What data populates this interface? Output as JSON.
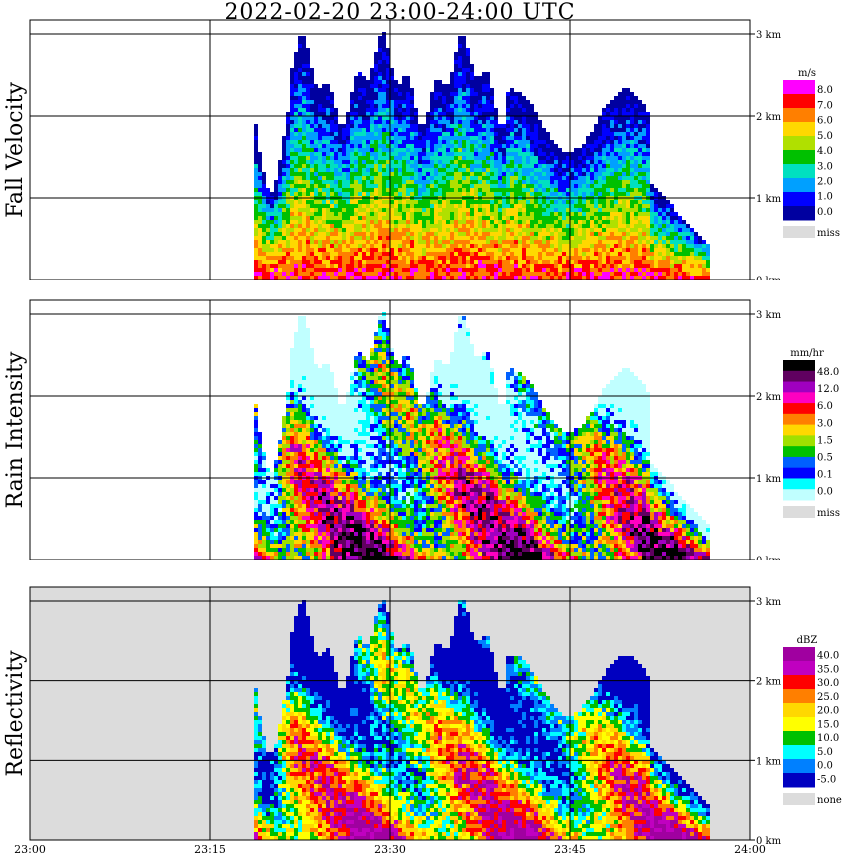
{
  "title": "2022-02-20  23:00-24:00 UTC",
  "chart_data": [
    {
      "type": "heatmap",
      "ylabel": "Fall Velocity",
      "x_ticks": [
        "23:00",
        "23:15",
        "23:30",
        "23:45",
        "24:00"
      ],
      "y_ticks": [
        "0 km",
        "1 km",
        "2 km",
        "3 km"
      ],
      "legend": {
        "unit": "m/s",
        "labels": [
          "8.0",
          "7.0",
          "6.0",
          "5.0",
          "4.0",
          "3.0",
          "2.0",
          "1.0",
          "0.0"
        ],
        "colors": [
          "#ff00ff",
          "#ff0000",
          "#ff7f00",
          "#ffd800",
          "#b0e000",
          "#00c000",
          "#00e0c0",
          "#00a0ff",
          "#0000ff",
          "#0000a0"
        ],
        "missing_label": "miss",
        "missing_color": "#dcdcdc"
      }
    },
    {
      "type": "heatmap",
      "ylabel": "Rain Intensity",
      "x_ticks": [
        "23:00",
        "23:15",
        "23:30",
        "23:45",
        "24:00"
      ],
      "y_ticks": [
        "0 km",
        "1 km",
        "2 km",
        "3 km"
      ],
      "legend": {
        "unit": "mm/hr",
        "labels": [
          "48.0",
          "12.0",
          "6.0",
          "3.0",
          "1.5",
          "0.5",
          "0.1",
          "0.0"
        ],
        "colors": [
          "#000000",
          "#600060",
          "#a000c0",
          "#ff00c0",
          "#ff0000",
          "#ff7f00",
          "#ffd800",
          "#a0e000",
          "#00c000",
          "#0060ff",
          "#0000ff",
          "#00ffff",
          "#c0ffff"
        ],
        "missing_label": "miss",
        "missing_color": "#dcdcdc"
      }
    },
    {
      "type": "heatmap",
      "ylabel": "Reflectivity",
      "x_ticks": [
        "23:00",
        "23:15",
        "23:30",
        "23:45",
        "24:00"
      ],
      "y_ticks": [
        "0 km",
        "1 km",
        "2 km",
        "3 km"
      ],
      "legend": {
        "unit": "dBZ",
        "labels": [
          "40.0",
          "35.0",
          "30.0",
          "25.0",
          "20.0",
          "15.0",
          "10.0",
          "5.0",
          "0.0",
          "-5.0"
        ],
        "colors": [
          "#a000a0",
          "#c000c0",
          "#ff0000",
          "#ff7f00",
          "#ffd800",
          "#ffff00",
          "#00c000",
          "#00ffff",
          "#0080ff",
          "#0000c0"
        ],
        "missing_label": "none",
        "missing_color": "#dcdcdc"
      }
    }
  ]
}
